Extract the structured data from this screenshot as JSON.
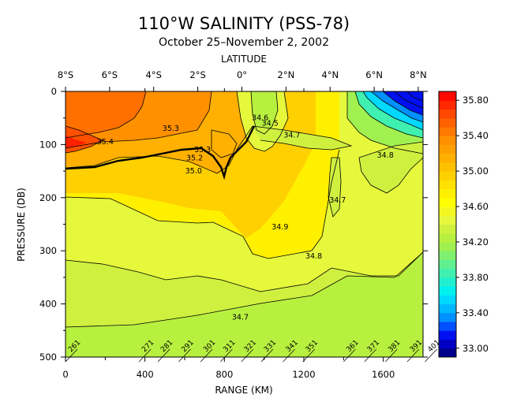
{
  "chart_data": {
    "type": "heatmap",
    "title": "110°W SALINITY (PSS-78)",
    "subtitle": "October 25–November 2, 2002",
    "top_axis_label": "LATITUDE",
    "xlabel": "RANGE (KM)",
    "ylabel": "PRESSURE (DB)",
    "xlim": [
      0,
      1800
    ],
    "ylim": [
      0,
      500
    ],
    "y_inverted": true,
    "x_ticks": [
      {
        "value": 0,
        "label": "0"
      },
      {
        "value": 400,
        "label": "400"
      },
      {
        "value": 800,
        "label": "800"
      },
      {
        "value": 1200,
        "label": "1200"
      },
      {
        "value": 1600,
        "label": "1600"
      }
    ],
    "x_minor_ticks": [
      200,
      600,
      1000,
      1400
    ],
    "y_ticks": [
      {
        "value": 0,
        "label": "0"
      },
      {
        "value": 100,
        "label": "100"
      },
      {
        "value": 200,
        "label": "200"
      },
      {
        "value": 300,
        "label": "300"
      },
      {
        "value": 400,
        "label": "400"
      },
      {
        "value": 500,
        "label": "500"
      }
    ],
    "lat_ticks": [
      {
        "km": 0,
        "label": "8°S"
      },
      {
        "km": 222,
        "label": "6°S"
      },
      {
        "km": 444,
        "label": "4°S"
      },
      {
        "km": 666,
        "label": "2°S"
      },
      {
        "km": 888,
        "label": "0°"
      },
      {
        "km": 1110,
        "label": "2°N"
      },
      {
        "km": 1332,
        "label": "4°N"
      },
      {
        "km": 1554,
        "label": "6°N"
      },
      {
        "km": 1776,
        "label": "8°N"
      }
    ],
    "stations": [
      {
        "km": 20,
        "label": "261"
      },
      {
        "km": 390,
        "label": "271"
      },
      {
        "km": 485,
        "label": "281"
      },
      {
        "km": 590,
        "label": "291"
      },
      {
        "km": 700,
        "label": "301"
      },
      {
        "km": 800,
        "label": "311"
      },
      {
        "km": 905,
        "label": "321"
      },
      {
        "km": 1005,
        "label": "331"
      },
      {
        "km": 1115,
        "label": "341"
      },
      {
        "km": 1215,
        "label": "351"
      },
      {
        "km": 1420,
        "label": "361"
      },
      {
        "km": 1525,
        "label": "371"
      },
      {
        "km": 1630,
        "label": "381"
      },
      {
        "km": 1740,
        "label": "391"
      },
      {
        "km": 1830,
        "label": "401"
      }
    ],
    "colorbar": {
      "min": 32.9,
      "max": 35.9,
      "step": 0.1,
      "tick_values": [
        35.8,
        35.4,
        35.0,
        34.6,
        34.2,
        33.8,
        33.4,
        33.0
      ],
      "tick_labels": [
        "35.80",
        "35.40",
        "35.00",
        "34.60",
        "34.20",
        "33.80",
        "33.40",
        "33.00"
      ],
      "colors": [
        "#00008b",
        "#0000c4",
        "#0010f0",
        "#0050ff",
        "#0090ff",
        "#00b8ff",
        "#00d8ff",
        "#00f0f0",
        "#20f0d0",
        "#40f0b0",
        "#60f090",
        "#80f070",
        "#a0f050",
        "#b8f040",
        "#d0f040",
        "#e6f83c",
        "#f4f820",
        "#ffff00",
        "#fff000",
        "#ffe000",
        "#ffd000",
        "#ffc000",
        "#ffb000",
        "#ffa000",
        "#ff9000",
        "#ff7800",
        "#ff6000",
        "#ff4800",
        "#ff2800",
        "#ff0800"
      ]
    },
    "contour_labels": [
      {
        "text": "35.3",
        "x": 530,
        "y": 70
      },
      {
        "text": "35.4",
        "x": 200,
        "y": 95
      },
      {
        "text": "35.3",
        "x": 690,
        "y": 110
      },
      {
        "text": "35.2",
        "x": 650,
        "y": 125
      },
      {
        "text": "35.0",
        "x": 645,
        "y": 150
      },
      {
        "text": "34.6",
        "x": 980,
        "y": 50
      },
      {
        "text": "34.5",
        "x": 1030,
        "y": 60
      },
      {
        "text": "34.7",
        "x": 1140,
        "y": 82
      },
      {
        "text": "34.8",
        "x": 1610,
        "y": 120
      },
      {
        "text": "34.7",
        "x": 1370,
        "y": 205
      },
      {
        "text": "34.9",
        "x": 1080,
        "y": 255
      },
      {
        "text": "34.8",
        "x": 1250,
        "y": 310
      },
      {
        "text": "34.7",
        "x": 880,
        "y": 425
      }
    ]
  }
}
